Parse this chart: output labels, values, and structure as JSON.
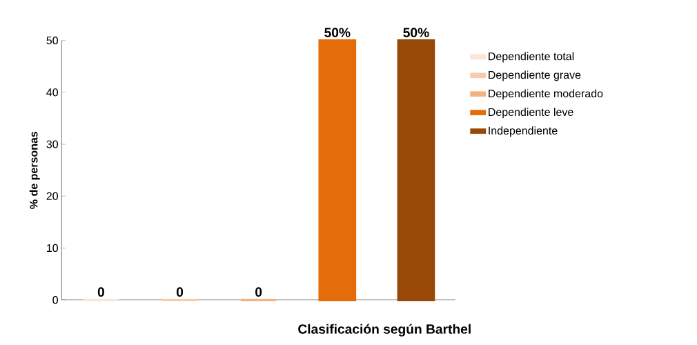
{
  "chart_data": {
    "type": "bar",
    "xlabel": "Clasificación según Barthel",
    "ylabel": "% de personas",
    "categories": [
      null
    ],
    "series": [
      {
        "name": "Dependiente total",
        "color": "#fbe5d6",
        "values": [
          0
        ],
        "value_labels": [
          "0"
        ]
      },
      {
        "name": "Dependiente grave",
        "color": "#f8cbad",
        "values": [
          0
        ],
        "value_labels": [
          "0"
        ]
      },
      {
        "name": "Dependiente moderado",
        "color": "#f4b183",
        "values": [
          0
        ],
        "value_labels": [
          "0"
        ]
      },
      {
        "name": "Dependiente leve",
        "color": "#e46c0a",
        "values": [
          50
        ],
        "value_labels": [
          "50%"
        ]
      },
      {
        "name": "Independiente",
        "color": "#984807",
        "values": [
          50
        ],
        "value_labels": [
          "50%"
        ]
      }
    ],
    "ylim": [
      0,
      50
    ],
    "yticks": [
      0,
      10,
      20,
      30,
      40,
      50
    ],
    "legend": "right",
    "grid": false
  }
}
